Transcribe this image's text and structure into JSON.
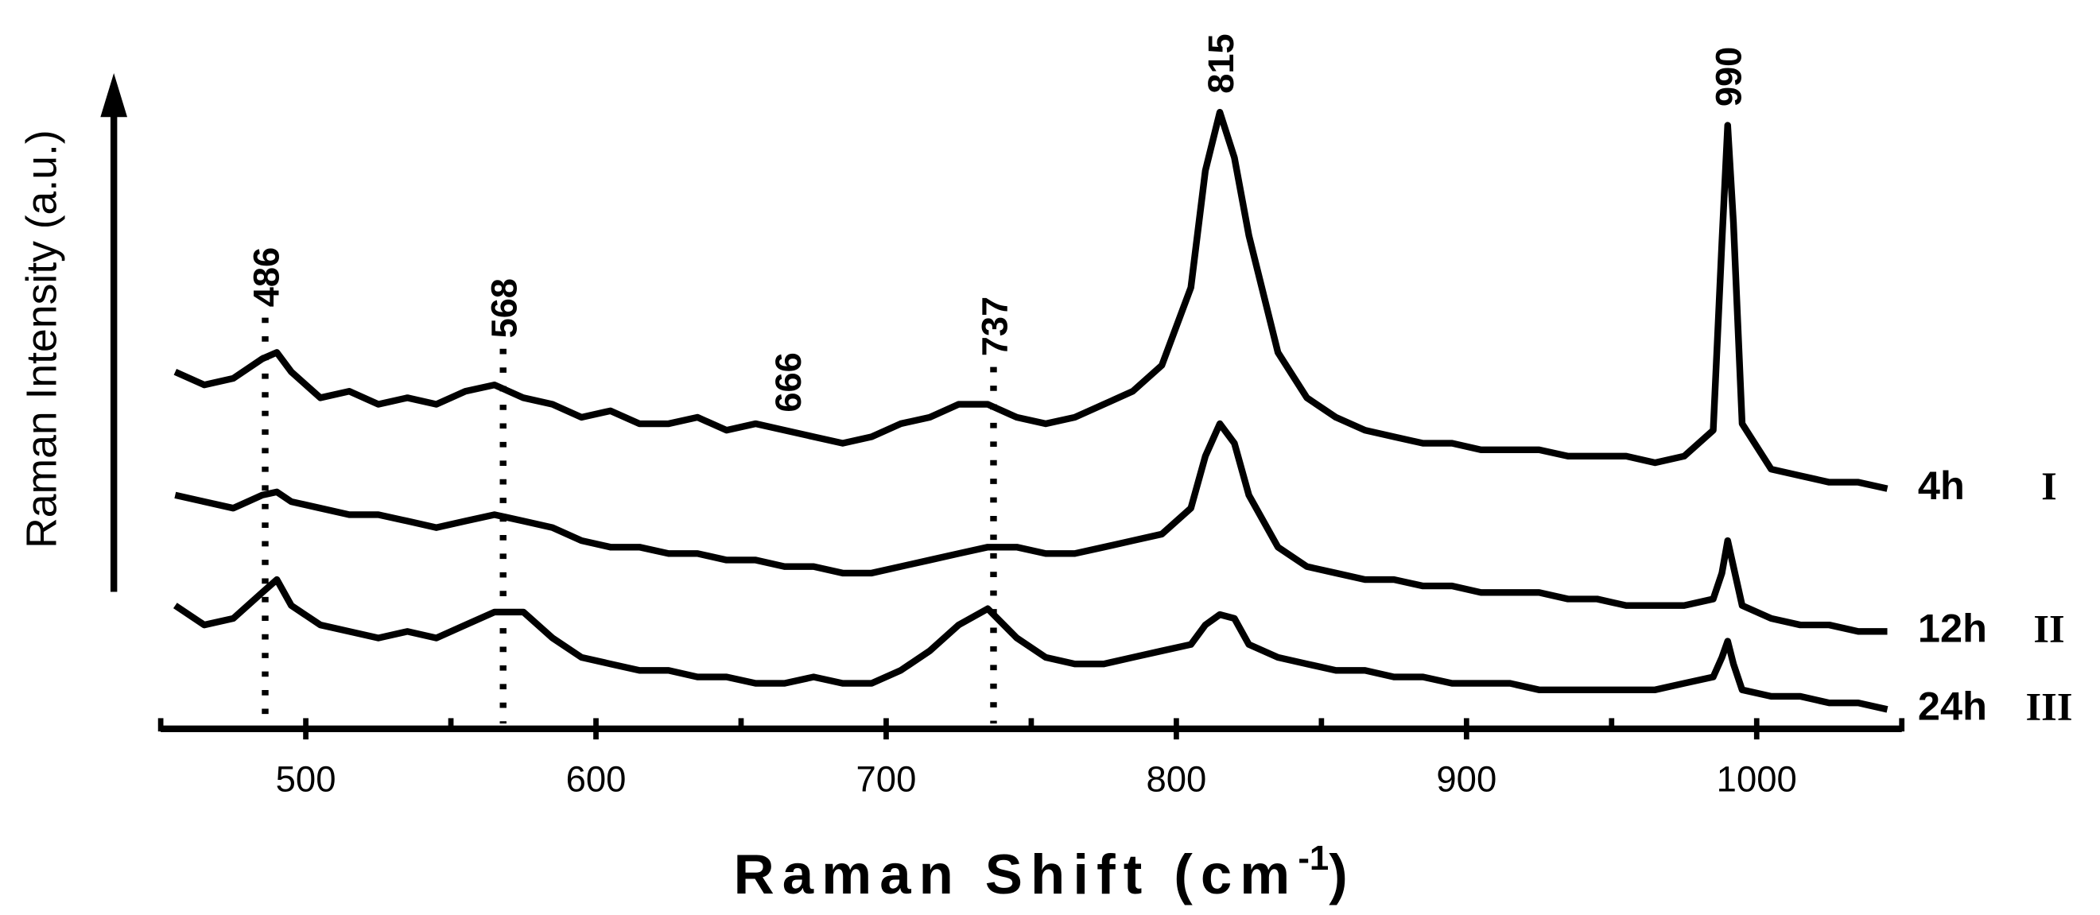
{
  "chart_data": {
    "type": "line",
    "ylabel": "Raman Intensity (a.u.)",
    "xlabel": "Raman Shift (cm",
    "xlabel_sup": "-1",
    "xlabel_end": ")",
    "xlim": [
      450,
      1050
    ],
    "xticks": [
      500,
      600,
      700,
      800,
      900,
      1000
    ],
    "xminor_ticks": [
      450,
      550,
      650,
      750,
      850,
      950,
      1050
    ],
    "ylim": [
      0,
      100
    ],
    "x": [
      455,
      465,
      475,
      485,
      490,
      495,
      505,
      515,
      525,
      535,
      545,
      555,
      565,
      575,
      585,
      595,
      605,
      615,
      625,
      635,
      645,
      655,
      665,
      675,
      685,
      695,
      705,
      715,
      725,
      735,
      745,
      755,
      765,
      775,
      785,
      795,
      805,
      810,
      815,
      820,
      825,
      835,
      845,
      855,
      865,
      875,
      885,
      895,
      905,
      915,
      925,
      935,
      945,
      955,
      965,
      975,
      985,
      988,
      990,
      992,
      995,
      1005,
      1015,
      1025,
      1035,
      1045
    ],
    "series": [
      {
        "name": "4h",
        "tag": "I",
        "color": "#000000",
        "values": [
          55,
          53,
          54,
          57,
          58,
          55,
          51,
          52,
          50,
          51,
          50,
          52,
          53,
          51,
          50,
          48,
          49,
          47,
          47,
          48,
          46,
          47,
          46,
          45,
          44,
          45,
          47,
          48,
          50,
          50,
          48,
          47,
          48,
          50,
          52,
          56,
          68,
          86,
          95,
          88,
          76,
          58,
          51,
          48,
          46,
          45,
          44,
          44,
          43,
          43,
          43,
          42,
          42,
          42,
          41,
          42,
          46,
          75,
          93,
          78,
          47,
          40,
          39,
          38,
          38,
          37
        ]
      },
      {
        "name": "12h",
        "tag": "II",
        "color": "#000000",
        "values": [
          36,
          35,
          34,
          36,
          36.5,
          35,
          34,
          33,
          33,
          32,
          31,
          32,
          33,
          32,
          31,
          29,
          28,
          28,
          27,
          27,
          26,
          26,
          25,
          25,
          24,
          24,
          25,
          26,
          27,
          28,
          28,
          27,
          27,
          28,
          29,
          30,
          34,
          42,
          47,
          44,
          36,
          28,
          25,
          24,
          23,
          23,
          22,
          22,
          21,
          21,
          21,
          20,
          20,
          19,
          19,
          19,
          20,
          24,
          29,
          25,
          19,
          17,
          16,
          16,
          15,
          15
        ]
      },
      {
        "name": "24h",
        "tag": "III",
        "color": "#000000",
        "values": [
          19,
          16,
          17,
          21,
          23,
          19,
          16,
          15,
          14,
          15,
          14,
          16,
          18,
          18,
          14,
          11,
          10,
          9,
          9,
          8,
          8,
          7,
          7,
          8,
          7,
          7,
          9,
          12,
          16,
          18.5,
          14,
          11,
          10,
          10,
          11,
          12,
          13,
          16,
          17.6,
          17,
          13,
          11,
          10,
          9,
          9,
          8,
          8,
          7,
          7,
          7,
          6,
          6,
          6,
          6,
          6,
          7,
          8,
          11,
          13.5,
          10,
          6,
          5,
          5,
          4,
          4,
          3
        ]
      }
    ],
    "annotations": [
      {
        "text": "486",
        "x": 486,
        "dotted_line": true
      },
      {
        "text": "568",
        "x": 568,
        "dotted_line": true
      },
      {
        "text": "666",
        "x": 666,
        "dotted_line": false
      },
      {
        "text": "737",
        "x": 737,
        "dotted_line": true
      },
      {
        "text": "815",
        "x": 815,
        "dotted_line": false
      },
      {
        "text": "990",
        "x": 990,
        "dotted_line": false
      }
    ]
  }
}
